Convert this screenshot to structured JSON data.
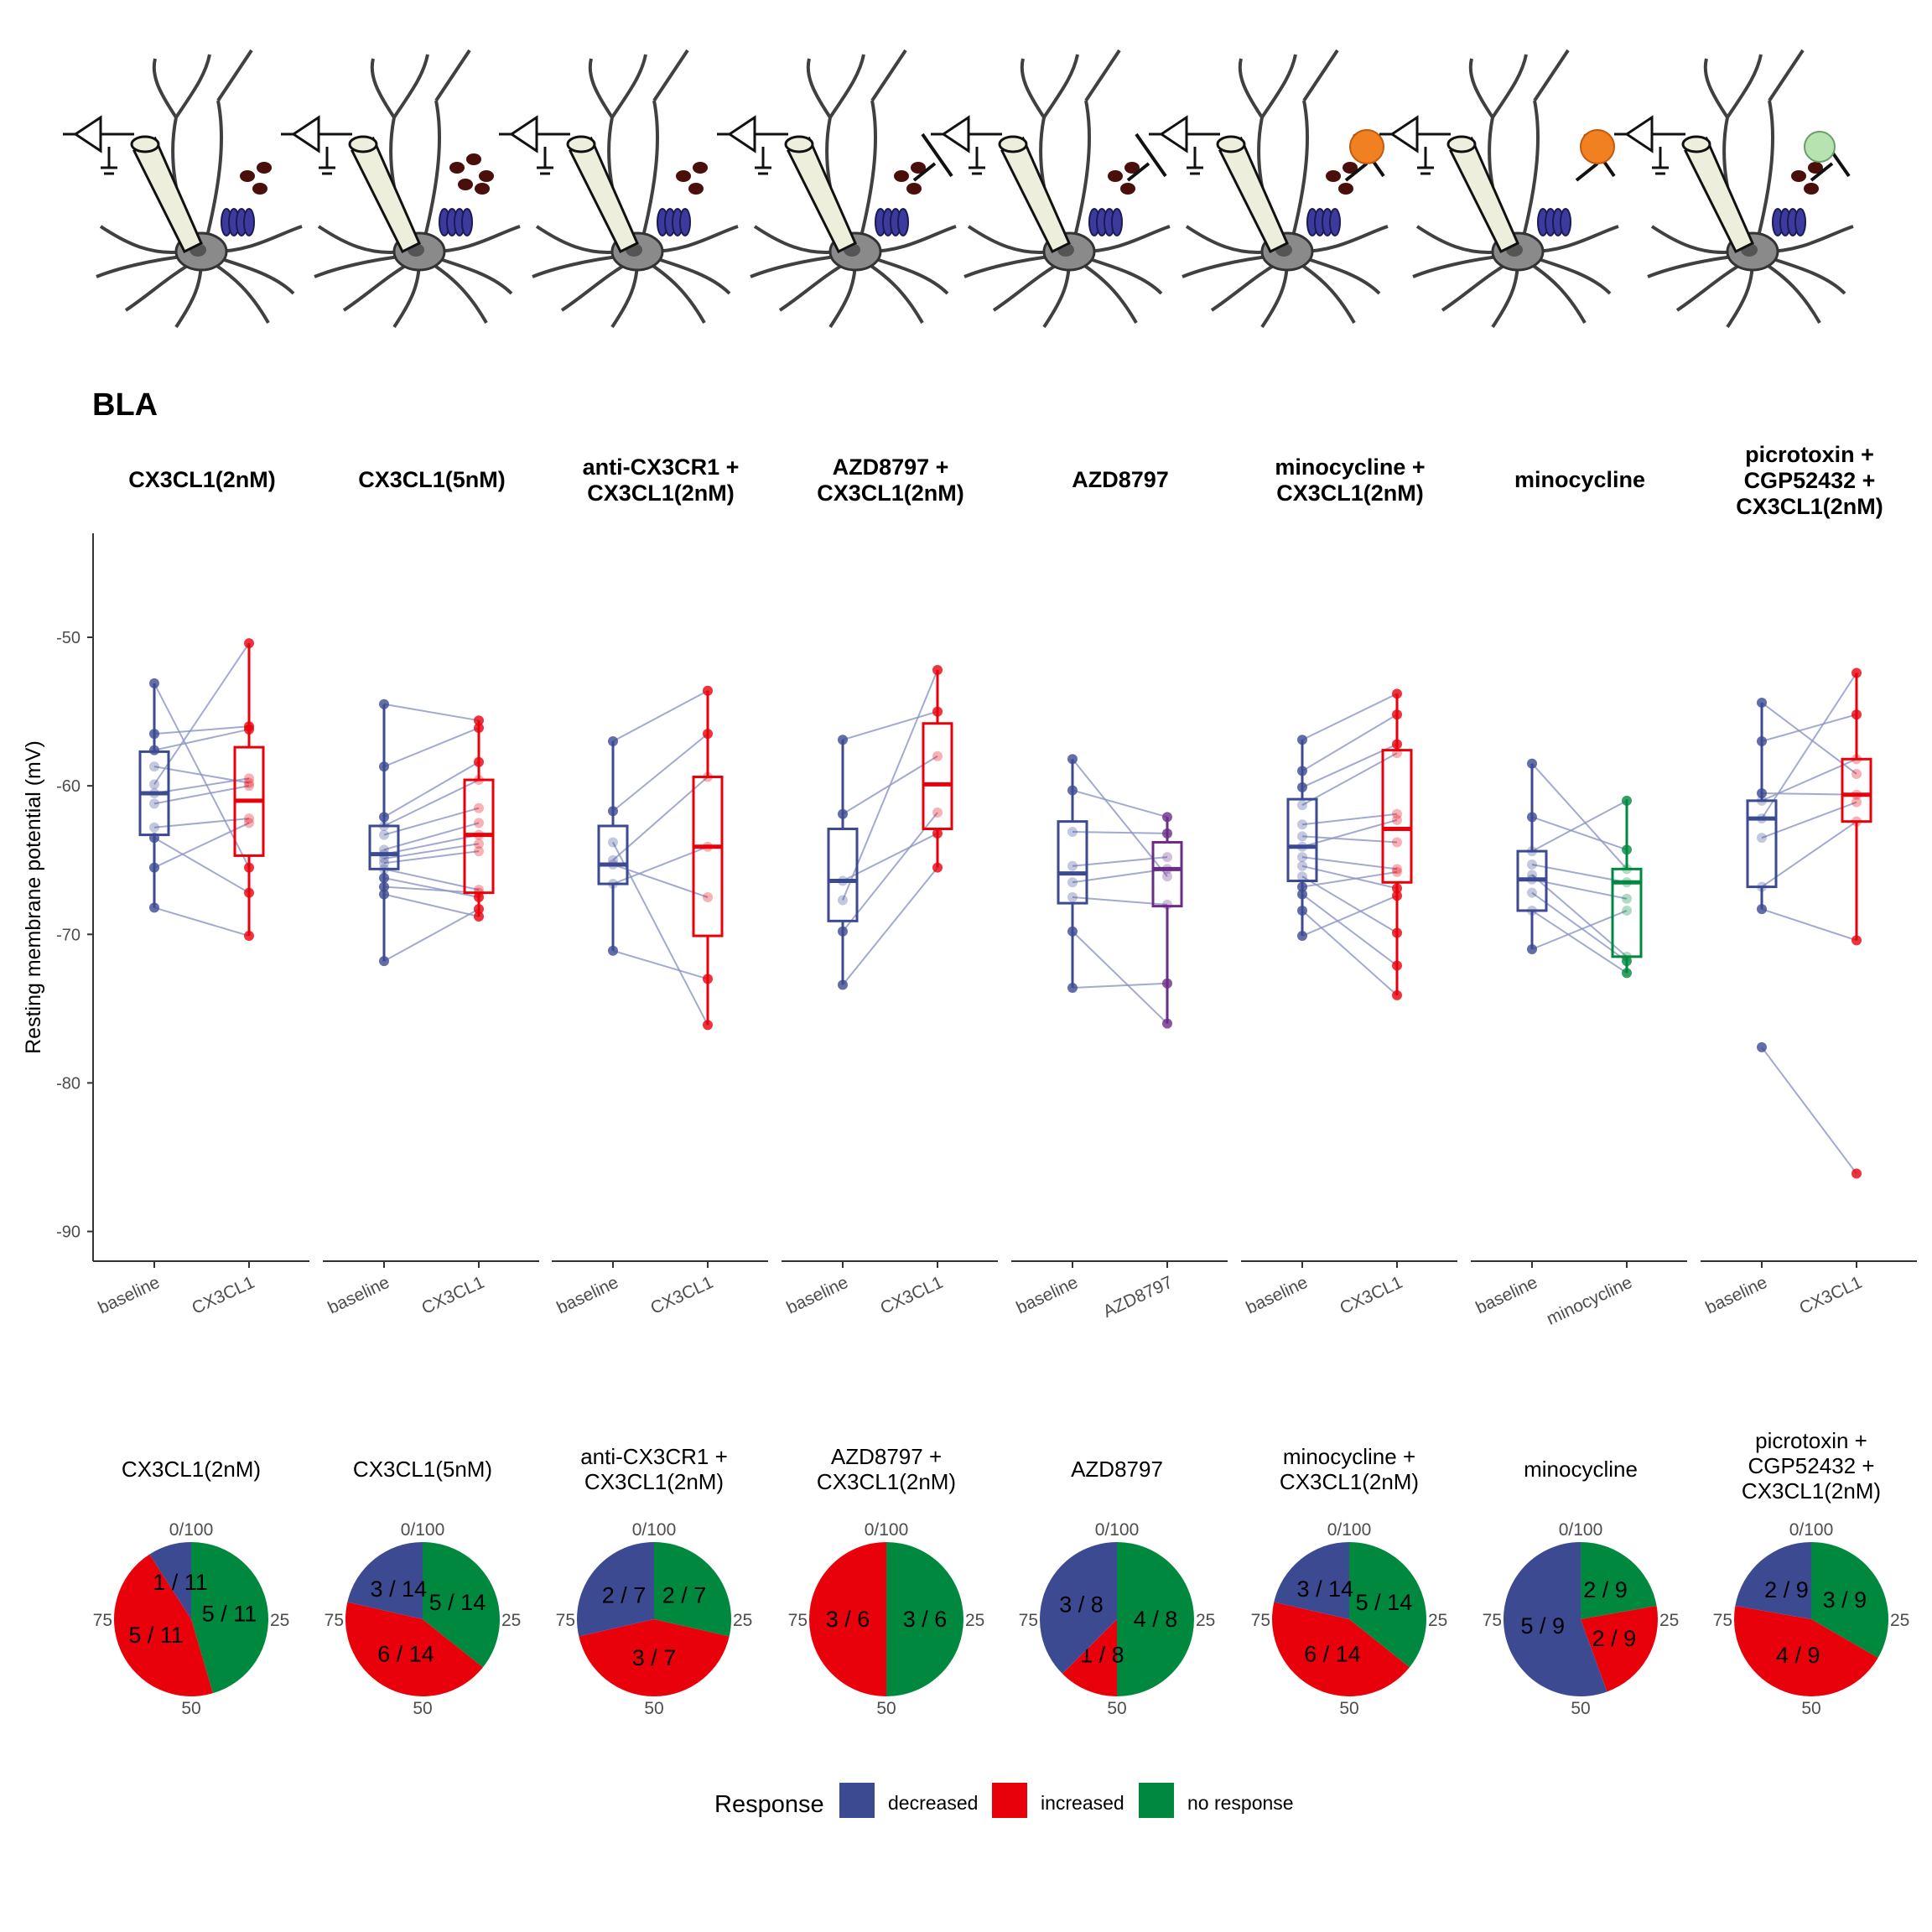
{
  "figure_label": "BLA",
  "colors": {
    "decreased": "#3C4A92",
    "increased": "#E8000B",
    "no_response": "#00883F",
    "azd": "#6B2C87",
    "line": "#8C95C4"
  },
  "chart_data": [
    {
      "type": "box",
      "ylabel": "Resting membrane potential (mV)",
      "ylim": [
        -92,
        -43
      ],
      "yticks": [
        -50,
        -60,
        -70,
        -80,
        -90
      ],
      "panels": [
        {
          "title": [
            "CX3CL1(2nM)"
          ],
          "conds": [
            "baseline",
            "CX3CL1"
          ],
          "box": [
            [
              -63.3,
              -60.5,
              -57.7
            ],
            [
              -64.7,
              -61.0,
              -57.4
            ]
          ],
          "whisk": [
            [
              -68.2,
              -53.1
            ],
            [
              -70.1,
              -50.4
            ]
          ],
          "pairs": [
            [
              -53.1,
              -65.5
            ],
            [
              -56.5,
              -56.0
            ],
            [
              -57.6,
              -56.2
            ],
            [
              -58.7,
              -59.8
            ],
            [
              -59.9,
              -50.4
            ],
            [
              -61.2,
              -60.0
            ],
            [
              -62.8,
              -62.2
            ],
            [
              -63.5,
              -67.2
            ],
            [
              -65.5,
              -62.5
            ],
            [
              -68.2,
              -70.1
            ],
            [
              -60.5,
              -59.5
            ]
          ]
        },
        {
          "title": [
            "CX3CL1(5nM)"
          ],
          "conds": [
            "baseline",
            "CX3CL1"
          ],
          "box": [
            [
              -65.6,
              -64.6,
              -62.7
            ],
            [
              -67.2,
              -63.3,
              -59.6
            ]
          ],
          "whisk": [
            [
              -71.8,
              -54.5
            ],
            [
              -68.8,
              -55.6
            ]
          ],
          "pairs": [
            [
              -54.5,
              -55.6
            ],
            [
              -58.7,
              -56.1
            ],
            [
              -62.1,
              -58.4
            ],
            [
              -62.7,
              -59.6
            ],
            [
              -63.3,
              -61.5
            ],
            [
              -64.3,
              -62.5
            ],
            [
              -64.6,
              -63.3
            ],
            [
              -64.9,
              -63.9
            ],
            [
              -65.2,
              -64.4
            ],
            [
              -65.6,
              -67.0
            ],
            [
              -66.2,
              -67.5
            ],
            [
              -66.8,
              -67.2
            ],
            [
              -67.3,
              -68.8
            ],
            [
              -71.8,
              -68.3
            ]
          ]
        },
        {
          "title": [
            "anti-CX3CR1 +",
            "CX3CL1(2nM)"
          ],
          "conds": [
            "baseline",
            "CX3CL1"
          ],
          "box": [
            [
              -66.6,
              -65.3,
              -62.7
            ],
            [
              -70.1,
              -64.1,
              -59.4
            ]
          ],
          "whisk": [
            [
              -71.1,
              -57.0
            ],
            [
              -76.1,
              -53.6
            ]
          ],
          "pairs": [
            [
              -57.0,
              -53.6
            ],
            [
              -61.7,
              -56.5
            ],
            [
              -63.8,
              -76.1
            ],
            [
              -65.3,
              -67.5
            ],
            [
              -66.6,
              -64.1
            ],
            [
              -71.1,
              -73.0
            ],
            [
              -65.0,
              -59.4
            ]
          ]
        },
        {
          "title": [
            "AZD8797 +",
            "CX3CL1(2nM)"
          ],
          "conds": [
            "baseline",
            "CX3CL1"
          ],
          "box": [
            [
              -69.1,
              -66.4,
              -62.9
            ],
            [
              -62.9,
              -59.9,
              -55.8
            ]
          ],
          "whisk": [
            [
              -73.4,
              -56.9
            ],
            [
              -65.5,
              -52.2
            ]
          ],
          "pairs": [
            [
              -56.9,
              -55.0
            ],
            [
              -61.9,
              -58.0
            ],
            [
              -66.4,
              -63.2
            ],
            [
              -67.7,
              -52.2
            ],
            [
              -69.8,
              -61.8
            ],
            [
              -73.4,
              -65.5
            ]
          ]
        },
        {
          "title": [
            "AZD8797"
          ],
          "conds": [
            "baseline",
            "AZD8797"
          ],
          "box": [
            [
              -67.9,
              -65.9,
              -62.4
            ],
            [
              -68.1,
              -65.6,
              -63.8
            ]
          ],
          "whisk": [
            [
              -73.6,
              -58.2
            ],
            [
              -76.0,
              -62.1
            ]
          ],
          "pairs": [
            [
              -58.2,
              -66.1
            ],
            [
              -60.3,
              -62.1
            ],
            [
              -63.1,
              -63.2
            ],
            [
              -65.4,
              -64.8
            ],
            [
              -66.5,
              -65.6
            ],
            [
              -67.5,
              -68.0
            ],
            [
              -69.8,
              -76.0
            ],
            [
              -73.6,
              -73.3
            ]
          ]
        },
        {
          "title": [
            "minocycline +",
            "CX3CL1(2nM)"
          ],
          "conds": [
            "baseline",
            "CX3CL1"
          ],
          "box": [
            [
              -66.4,
              -64.1,
              -60.9
            ],
            [
              -66.5,
              -62.9,
              -57.6
            ]
          ],
          "whisk": [
            [
              -70.1,
              -56.9
            ],
            [
              -74.1,
              -53.8
            ]
          ],
          "pairs": [
            [
              -56.9,
              -53.8
            ],
            [
              -59.0,
              -55.2
            ],
            [
              -60.1,
              -57.2
            ],
            [
              -61.3,
              -57.8
            ],
            [
              -62.6,
              -61.9
            ],
            [
              -63.4,
              -63.8
            ],
            [
              -64.1,
              -62.3
            ],
            [
              -64.8,
              -65.6
            ],
            [
              -65.4,
              -66.9
            ],
            [
              -66.1,
              -69.9
            ],
            [
              -66.8,
              -65.8
            ],
            [
              -67.3,
              -72.1
            ],
            [
              -68.4,
              -74.1
            ],
            [
              -70.1,
              -67.4
            ]
          ]
        },
        {
          "title": [
            "minocycline"
          ],
          "conds": [
            "baseline",
            "minocycline"
          ],
          "box": [
            [
              -68.4,
              -66.3,
              -64.4
            ],
            [
              -71.5,
              -66.5,
              -65.6
            ]
          ],
          "whisk": [
            [
              -71.0,
              -58.5
            ],
            [
              -72.6,
              -60.9
            ]
          ],
          "pairs": [
            [
              -58.5,
              -65.6
            ],
            [
              -62.1,
              -64.3
            ],
            [
              -64.4,
              -61.0
            ],
            [
              -65.3,
              -66.5
            ],
            [
              -66.3,
              -67.6
            ],
            [
              -67.2,
              -71.8
            ],
            [
              -68.4,
              -72.6
            ],
            [
              -71.0,
              -68.4
            ],
            [
              -66.0,
              -71.5
            ]
          ]
        },
        {
          "title": [
            "picrotoxin +",
            "CGP52432 +",
            "CX3CL1(2nM)"
          ],
          "conds": [
            "baseline",
            "CX3CL1"
          ],
          "box": [
            [
              -66.8,
              -62.2,
              -61.0
            ],
            [
              -62.4,
              -60.6,
              -58.2
            ]
          ],
          "whisk": [
            [
              -68.3,
              -54.4
            ],
            [
              -70.4,
              -52.4
            ]
          ],
          "pairs": [
            [
              -54.4,
              -59.2
            ],
            [
              -57.0,
              -55.2
            ],
            [
              -61.0,
              -58.2
            ],
            [
              -62.2,
              -52.4
            ],
            [
              -63.5,
              -61.1
            ],
            [
              -66.8,
              -62.4
            ],
            [
              -68.3,
              -70.4
            ],
            [
              -77.6,
              -86.1
            ],
            [
              -60.5,
              -60.6
            ]
          ]
        }
      ]
    },
    {
      "type": "pie",
      "start_ticks": [
        "0/100",
        "25",
        "50",
        "75"
      ],
      "panels": [
        {
          "title": [
            "CX3CL1(2nM)"
          ],
          "d": 1,
          "i": 5,
          "n": 5,
          "total": 11
        },
        {
          "title": [
            "CX3CL1(5nM)"
          ],
          "d": 3,
          "i": 6,
          "n": 5,
          "total": 14
        },
        {
          "title": [
            "anti-CX3CR1 +",
            "CX3CL1(2nM)"
          ],
          "d": 2,
          "i": 3,
          "n": 2,
          "total": 7
        },
        {
          "title": [
            "AZD8797 +",
            "CX3CL1(2nM)"
          ],
          "d": 0,
          "i": 3,
          "n": 3,
          "total": 6
        },
        {
          "title": [
            "AZD8797"
          ],
          "d": 3,
          "i": 1,
          "n": 4,
          "total": 8
        },
        {
          "title": [
            "minocycline +",
            "CX3CL1(2nM)"
          ],
          "d": 3,
          "i": 6,
          "n": 5,
          "total": 14
        },
        {
          "title": [
            "minocycline"
          ],
          "d": 5,
          "i": 2,
          "n": 2,
          "total": 9
        },
        {
          "title": [
            "picrotoxin +",
            "CGP52432 +",
            "CX3CL1(2nM)"
          ],
          "d": 2,
          "i": 4,
          "n": 3,
          "total": 9
        }
      ]
    }
  ],
  "legend": {
    "title": "Response",
    "items": [
      "decreased",
      "increased",
      "no response"
    ]
  }
}
